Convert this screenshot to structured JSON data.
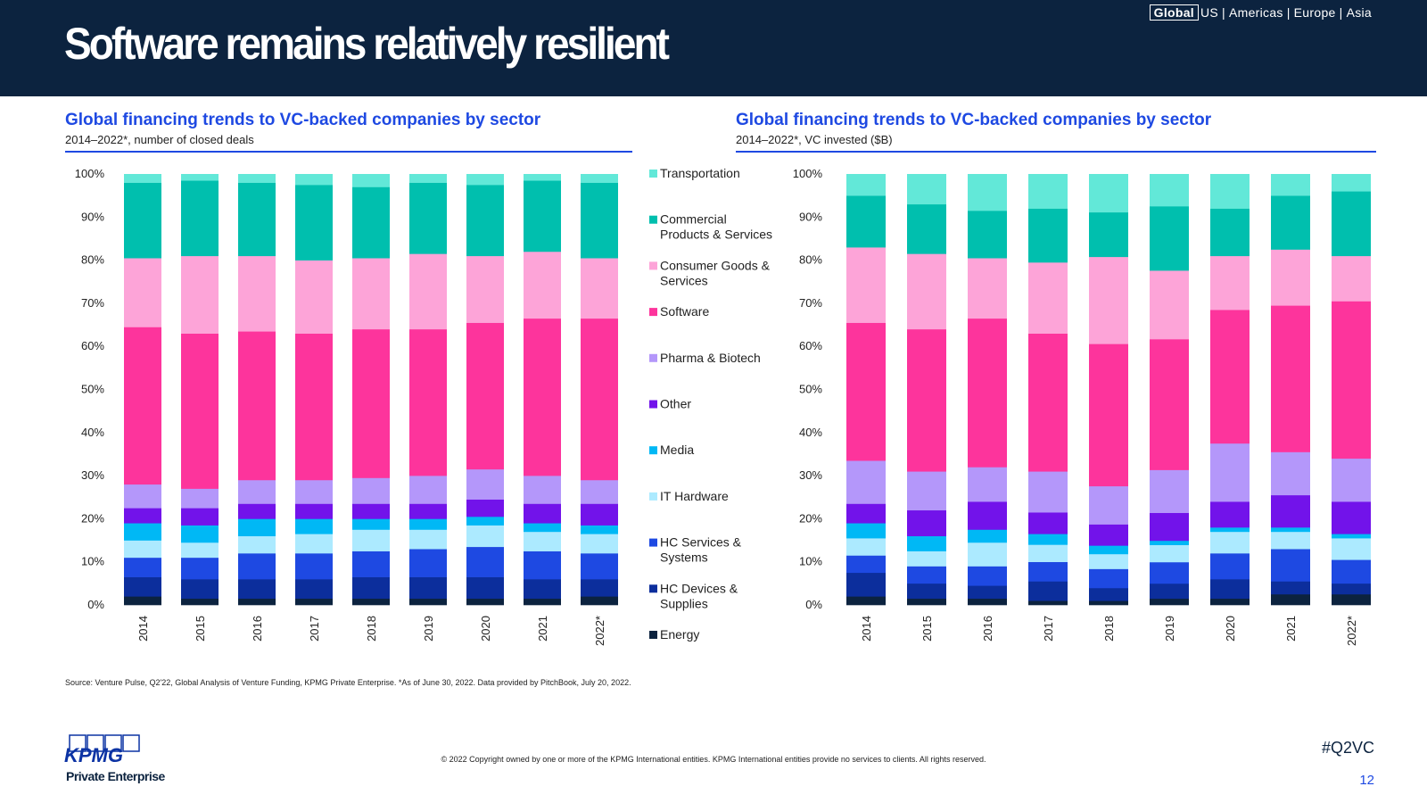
{
  "header": {
    "title": "Software remains relatively resilient",
    "regions": {
      "active": "Global",
      "others": [
        "US",
        "Americas",
        "Europe",
        "Asia"
      ],
      "separator": "|"
    }
  },
  "colors": {
    "Transportation": "#62e8d8",
    "Commercial Products & Services": "#00bfae",
    "Consumer Goods & Services": "#fda4d8",
    "Software": "#fd349c",
    "Pharma & Biotech": "#b497fa",
    "Other": "#7213ea",
    "Media": "#00b8f5",
    "IT Hardware": "#aceaff",
    "HC Services & Systems": "#1e49e2",
    "HC Devices & Supplies": "#0c2e9c",
    "Energy": "#0c233f"
  },
  "legend": [
    "Transportation",
    "Commercial Products & Services",
    "Consumer Goods & Services",
    "Software",
    "Pharma & Biotech",
    "Other",
    "Media",
    "IT Hardware",
    "HC Services & Systems",
    "HC Devices & Supplies",
    "Energy"
  ],
  "legend_display": [
    [
      "Transportation"
    ],
    [
      "Commercial",
      "Products & Services"
    ],
    [
      "Consumer Goods &",
      "Services"
    ],
    [
      "Software"
    ],
    [
      "Pharma & Biotech"
    ],
    [
      "Other"
    ],
    [
      "Media"
    ],
    [
      "IT Hardware"
    ],
    [
      "HC Services &",
      "Systems"
    ],
    [
      "HC Devices &",
      "Supplies"
    ],
    [
      "Energy"
    ]
  ],
  "chart_data": [
    {
      "type": "bar",
      "stacked": true,
      "percent": true,
      "title": "Global financing trends to VC-backed companies by sector",
      "subtitle": "2014–2022*, number of closed deals",
      "categories": [
        "2014",
        "2015",
        "2016",
        "2017",
        "2018",
        "2019",
        "2020",
        "2021",
        "2022*"
      ],
      "yticks": [
        "0%",
        "10%",
        "20%",
        "30%",
        "40%",
        "50%",
        "60%",
        "70%",
        "80%",
        "90%",
        "100%"
      ],
      "ylim": [
        0,
        100
      ],
      "series": [
        {
          "name": "Energy",
          "values": [
            2,
            1.5,
            1.5,
            1.5,
            1.5,
            1.5,
            1.5,
            1.5,
            2
          ]
        },
        {
          "name": "HC Devices & Supplies",
          "values": [
            4.5,
            4.5,
            4.5,
            4.5,
            5,
            5,
            5,
            4.5,
            4
          ]
        },
        {
          "name": "HC Services & Systems",
          "values": [
            4.5,
            5,
            6,
            6,
            6,
            6.5,
            7,
            6.5,
            6
          ]
        },
        {
          "name": "IT Hardware",
          "values": [
            4,
            3.5,
            4,
            4.5,
            5,
            4.5,
            5,
            4.5,
            4.5
          ]
        },
        {
          "name": "Media",
          "values": [
            4,
            4,
            4,
            3.5,
            2.5,
            2.5,
            2,
            2,
            2
          ]
        },
        {
          "name": "Other",
          "values": [
            3.5,
            4,
            3.5,
            3.5,
            3.5,
            3.5,
            4,
            4.5,
            5
          ]
        },
        {
          "name": "Pharma & Biotech",
          "values": [
            5.5,
            4.5,
            5.5,
            5.5,
            6,
            6.5,
            7,
            6.5,
            5.5
          ]
        },
        {
          "name": "Software",
          "values": [
            36.5,
            36,
            34.5,
            34,
            34.5,
            34,
            34,
            36.5,
            37.5
          ]
        },
        {
          "name": "Consumer Goods & Services",
          "values": [
            16,
            18,
            17.5,
            17,
            16.5,
            17.5,
            15.5,
            15.5,
            14
          ]
        },
        {
          "name": "Commercial Products & Services",
          "values": [
            17.5,
            17.5,
            17,
            17.5,
            16.5,
            16.5,
            16.5,
            16.5,
            17.5
          ]
        },
        {
          "name": "Transportation",
          "values": [
            2,
            1.5,
            2,
            2.5,
            3,
            2,
            2.5,
            1.5,
            2
          ]
        }
      ]
    },
    {
      "type": "bar",
      "stacked": true,
      "percent": true,
      "title": "Global financing trends to VC-backed companies by sector",
      "subtitle": "2014–2022*, VC invested ($B)",
      "categories": [
        "2014",
        "2015",
        "2016",
        "2017",
        "2018",
        "2019",
        "2020",
        "2021",
        "2022*"
      ],
      "yticks": [
        "0%",
        "10%",
        "20%",
        "30%",
        "40%",
        "50%",
        "60%",
        "70%",
        "80%",
        "90%",
        "100%"
      ],
      "ylim": [
        0,
        100
      ],
      "series": [
        {
          "name": "Energy",
          "values": [
            2,
            1.5,
            1.5,
            1,
            1,
            1.5,
            1.5,
            2.5,
            2.5
          ]
        },
        {
          "name": "HC Devices & Supplies",
          "values": [
            5.5,
            3.5,
            3,
            4.5,
            3,
            3.5,
            4.5,
            3,
            2.5
          ]
        },
        {
          "name": "HC Services & Systems",
          "values": [
            4,
            4,
            4.5,
            4.5,
            4.5,
            5,
            6,
            7.5,
            5.5
          ]
        },
        {
          "name": "IT Hardware",
          "values": [
            4,
            3.5,
            5.5,
            4,
            3.5,
            4,
            5,
            4,
            5
          ]
        },
        {
          "name": "Media",
          "values": [
            3.5,
            3.5,
            3,
            2.5,
            2,
            1,
            1,
            1,
            1
          ]
        },
        {
          "name": "Other",
          "values": [
            4.5,
            6,
            6.5,
            5,
            5,
            6.5,
            6,
            7.5,
            7.5
          ]
        },
        {
          "name": "Pharma & Biotech",
          "values": [
            10,
            9,
            8,
            9.5,
            9,
            10,
            13.5,
            10,
            10
          ]
        },
        {
          "name": "Software",
          "values": [
            32,
            33,
            34.5,
            32,
            33.5,
            30.5,
            31,
            34,
            36.5
          ]
        },
        {
          "name": "Consumer Goods & Services",
          "values": [
            17.5,
            17.5,
            14,
            16.5,
            20.5,
            16,
            12.5,
            13,
            10.5
          ]
        },
        {
          "name": "Commercial Products & Services",
          "values": [
            12,
            11.5,
            11,
            12.5,
            10.5,
            15,
            11,
            12.5,
            15
          ]
        },
        {
          "name": "Transportation",
          "values": [
            5,
            7,
            8.5,
            8,
            9,
            7.5,
            8,
            5,
            4
          ]
        }
      ]
    }
  ],
  "footer": {
    "source": "Source: Venture Pulse, Q2'22, Global Analysis of Venture Funding, KPMG Private Enterprise. *As of June 30, 2022. Data provided by PitchBook, July 20, 2022.",
    "copyright": "© 2022 Copyright owned by one or more of the KPMG International entities. KPMG International entities provide no services to clients. All rights reserved.",
    "logo_text": "KPMG",
    "logo_sub": "Private Enterprise",
    "hashtag": "#Q2VC",
    "page_number": "12"
  }
}
